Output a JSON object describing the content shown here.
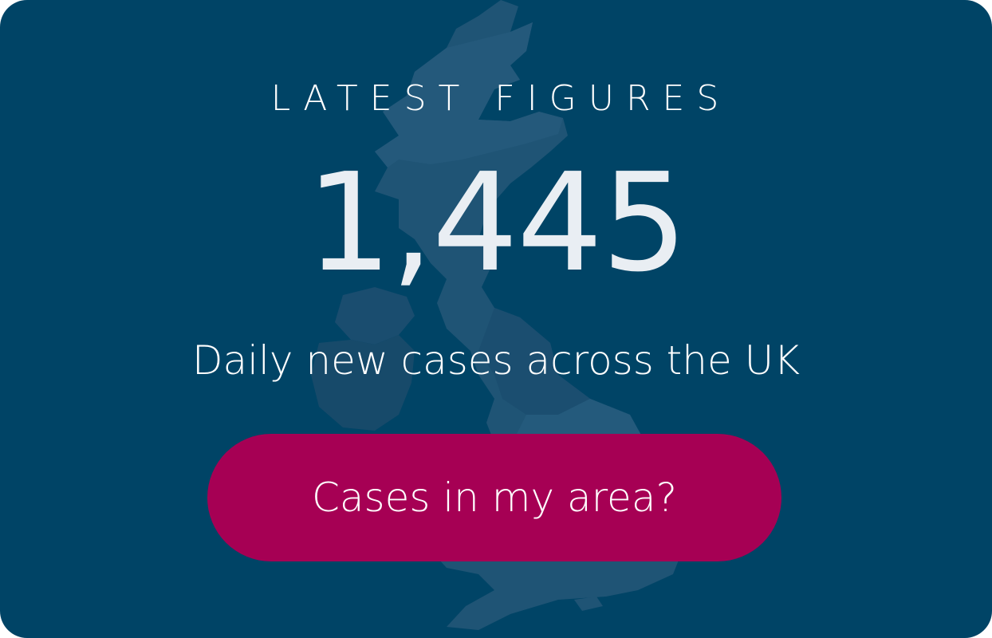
{
  "header": {
    "eyebrow": "LATEST FIGURES"
  },
  "stat": {
    "value": "1,445",
    "caption": "Daily new cases across the UK"
  },
  "cta": {
    "label": "Cases in my area?"
  },
  "colors": {
    "card_background": "#004466",
    "map_fill": "#1d5274",
    "map_fill_dark": "#174a6a",
    "number_text": "#e9eef3",
    "button_background": "#a60054",
    "button_text": "#ffffff"
  },
  "decor": {
    "background_graphic": "uk-map-icon"
  }
}
